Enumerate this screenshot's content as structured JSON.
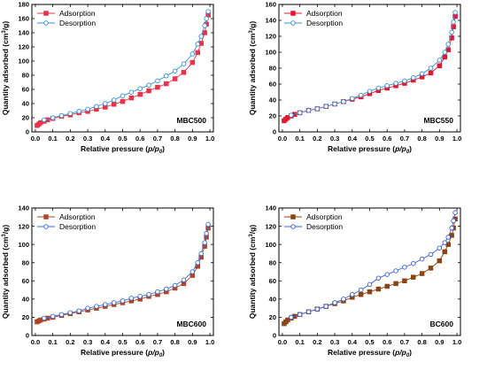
{
  "figure": {
    "background": "#ffffff",
    "description": ""
  },
  "chart_data": [
    {
      "type": "line",
      "title": "MBC500",
      "xlabel": "Relative pressure (p/p0)",
      "ylabel": "Quantity adsorbed (cm3/g)",
      "xlim": [
        -0.02,
        1.02
      ],
      "ylim": [
        0,
        180
      ],
      "xticks": [
        "0.0",
        "0.1",
        "0.2",
        "0.3",
        "0.4",
        "0.5",
        "0.6",
        "0.7",
        "0.8",
        "0.9",
        "1.0"
      ],
      "yticks": [
        "0",
        "20",
        "40",
        "60",
        "80",
        "100",
        "120",
        "140",
        "160",
        "180"
      ],
      "grid": false,
      "legend_position": "top-left",
      "series": [
        {
          "name": "Adsorption",
          "color": "#e8334a",
          "marker": "square",
          "filled": true,
          "x": [
            0.01,
            0.02,
            0.03,
            0.05,
            0.07,
            0.1,
            0.15,
            0.2,
            0.25,
            0.3,
            0.35,
            0.4,
            0.45,
            0.5,
            0.55,
            0.6,
            0.65,
            0.7,
            0.75,
            0.8,
            0.85,
            0.9,
            0.93,
            0.95,
            0.97,
            0.98,
            0.99
          ],
          "y": [
            9,
            11,
            13,
            15,
            17,
            19,
            22,
            24,
            27,
            29,
            32,
            35,
            39,
            43,
            48,
            53,
            58,
            63,
            68,
            75,
            84,
            98,
            112,
            125,
            140,
            152,
            165
          ]
        },
        {
          "name": "Desorption",
          "color": "#3a8fd6",
          "marker": "circle",
          "filled": false,
          "x": [
            0.99,
            0.98,
            0.97,
            0.95,
            0.93,
            0.9,
            0.85,
            0.8,
            0.75,
            0.7,
            0.65,
            0.6,
            0.55,
            0.5,
            0.45,
            0.4,
            0.35,
            0.3,
            0.25,
            0.2,
            0.15,
            0.1,
            0.05
          ],
          "y": [
            170,
            160,
            150,
            135,
            124,
            110,
            96,
            86,
            79,
            72,
            66,
            61,
            56,
            51,
            45,
            40,
            36,
            32,
            29,
            26,
            23,
            20,
            17
          ]
        }
      ]
    },
    {
      "type": "line",
      "title": "MBC550",
      "xlabel": "Relative pressure (p/p0)",
      "ylabel": "Quantity adsorbed (cm3/g)",
      "xlim": [
        -0.02,
        1.02
      ],
      "ylim": [
        0,
        160
      ],
      "xticks": [
        "0.0",
        "0.1",
        "0.2",
        "0.3",
        "0.4",
        "0.5",
        "0.6",
        "0.7",
        "0.8",
        "0.9",
        "1.0"
      ],
      "yticks": [
        "0",
        "20",
        "40",
        "60",
        "80",
        "100",
        "120",
        "140",
        "160"
      ],
      "grid": false,
      "legend_position": "top-left",
      "series": [
        {
          "name": "Adsorption",
          "color": "#e01830",
          "marker": "square",
          "filled": true,
          "x": [
            0.01,
            0.02,
            0.03,
            0.05,
            0.07,
            0.1,
            0.15,
            0.2,
            0.25,
            0.3,
            0.35,
            0.4,
            0.45,
            0.5,
            0.55,
            0.6,
            0.65,
            0.7,
            0.75,
            0.8,
            0.85,
            0.9,
            0.93,
            0.95,
            0.97,
            0.98,
            0.99
          ],
          "y": [
            14,
            16,
            18,
            20,
            22,
            24,
            27,
            29,
            32,
            35,
            38,
            41,
            44,
            48,
            52,
            55,
            58,
            61,
            65,
            69,
            74,
            83,
            94,
            103,
            118,
            132,
            145
          ]
        },
        {
          "name": "Desorption",
          "color": "#3a8fd6",
          "marker": "circle",
          "filled": false,
          "x": [
            0.99,
            0.98,
            0.97,
            0.95,
            0.93,
            0.9,
            0.85,
            0.8,
            0.75,
            0.7,
            0.65,
            0.6,
            0.55,
            0.5,
            0.45,
            0.4,
            0.35,
            0.3,
            0.25,
            0.2,
            0.15,
            0.1,
            0.05
          ],
          "y": [
            150,
            138,
            125,
            110,
            100,
            90,
            80,
            73,
            68,
            64,
            61,
            58,
            55,
            51,
            46,
            42,
            38,
            35,
            32,
            29,
            27,
            24,
            21
          ]
        }
      ]
    },
    {
      "type": "line",
      "title": "MBC600",
      "xlabel": "Relative pressure (p/p0)",
      "ylabel": "Quantity adsorbed (cm3/g)",
      "xlim": [
        -0.02,
        1.02
      ],
      "ylim": [
        0,
        140
      ],
      "xticks": [
        "0.0",
        "0.1",
        "0.2",
        "0.3",
        "0.4",
        "0.5",
        "0.6",
        "0.7",
        "0.8",
        "0.9",
        "1.0"
      ],
      "yticks": [
        "0",
        "20",
        "40",
        "60",
        "80",
        "100",
        "120",
        "140"
      ],
      "grid": false,
      "legend_position": "top-left",
      "series": [
        {
          "name": "Adsorption",
          "color": "#b0442a",
          "marker": "square",
          "filled": true,
          "x": [
            0.01,
            0.02,
            0.03,
            0.05,
            0.07,
            0.1,
            0.15,
            0.2,
            0.25,
            0.3,
            0.35,
            0.4,
            0.45,
            0.5,
            0.55,
            0.6,
            0.65,
            0.7,
            0.75,
            0.8,
            0.85,
            0.9,
            0.93,
            0.95,
            0.97,
            0.98,
            0.99
          ],
          "y": [
            15,
            16,
            17,
            18,
            19,
            20,
            22,
            24,
            26,
            28,
            30,
            32,
            34,
            36,
            38,
            40,
            43,
            45,
            48,
            52,
            57,
            66,
            76,
            86,
            98,
            108,
            118
          ]
        },
        {
          "name": "Desorption",
          "color": "#3a6fd6",
          "marker": "circle",
          "filled": false,
          "x": [
            0.99,
            0.98,
            0.97,
            0.95,
            0.93,
            0.9,
            0.85,
            0.8,
            0.75,
            0.7,
            0.65,
            0.6,
            0.55,
            0.5,
            0.45,
            0.4,
            0.35,
            0.3,
            0.25,
            0.2,
            0.15,
            0.1,
            0.05
          ],
          "y": [
            122,
            112,
            102,
            90,
            80,
            70,
            61,
            55,
            51,
            48,
            45,
            43,
            41,
            38,
            36,
            34,
            32,
            30,
            27,
            25,
            23,
            21,
            19
          ]
        }
      ]
    },
    {
      "type": "line",
      "title": "BC600",
      "xlabel": "Relative pressure (p/p0)",
      "ylabel": "Quantity adsorbed (cm3/g)",
      "xlim": [
        -0.02,
        1.02
      ],
      "ylim": [
        0,
        140
      ],
      "xticks": [
        "0.0",
        "0.1",
        "0.2",
        "0.3",
        "0.4",
        "0.5",
        "0.6",
        "0.7",
        "0.8",
        "0.9",
        "1.0"
      ],
      "yticks": [
        "0",
        "20",
        "40",
        "60",
        "80",
        "100",
        "120",
        "140"
      ],
      "grid": false,
      "legend_position": "top-left",
      "series": [
        {
          "name": "Adsorption",
          "color": "#8b4513",
          "marker": "square",
          "filled": true,
          "x": [
            0.01,
            0.02,
            0.03,
            0.05,
            0.07,
            0.1,
            0.15,
            0.2,
            0.25,
            0.3,
            0.35,
            0.4,
            0.45,
            0.5,
            0.55,
            0.6,
            0.65,
            0.7,
            0.75,
            0.8,
            0.85,
            0.9,
            0.93,
            0.95,
            0.97,
            0.98,
            0.99
          ],
          "y": [
            13,
            15,
            17,
            19,
            21,
            23,
            26,
            29,
            32,
            35,
            38,
            42,
            45,
            48,
            51,
            54,
            57,
            60,
            64,
            68,
            74,
            82,
            92,
            100,
            110,
            118,
            128
          ]
        },
        {
          "name": "Desorption",
          "color": "#3a5fd6",
          "marker": "circle",
          "filled": false,
          "x": [
            0.99,
            0.98,
            0.97,
            0.95,
            0.93,
            0.9,
            0.85,
            0.8,
            0.75,
            0.7,
            0.65,
            0.6,
            0.55,
            0.5,
            0.45,
            0.4,
            0.35,
            0.3,
            0.25,
            0.2,
            0.15,
            0.1,
            0.05
          ],
          "y": [
            135,
            126,
            118,
            108,
            102,
            96,
            89,
            84,
            79,
            75,
            71,
            67,
            63,
            56,
            50,
            45,
            40,
            36,
            32,
            29,
            26,
            23,
            20
          ]
        }
      ]
    }
  ]
}
